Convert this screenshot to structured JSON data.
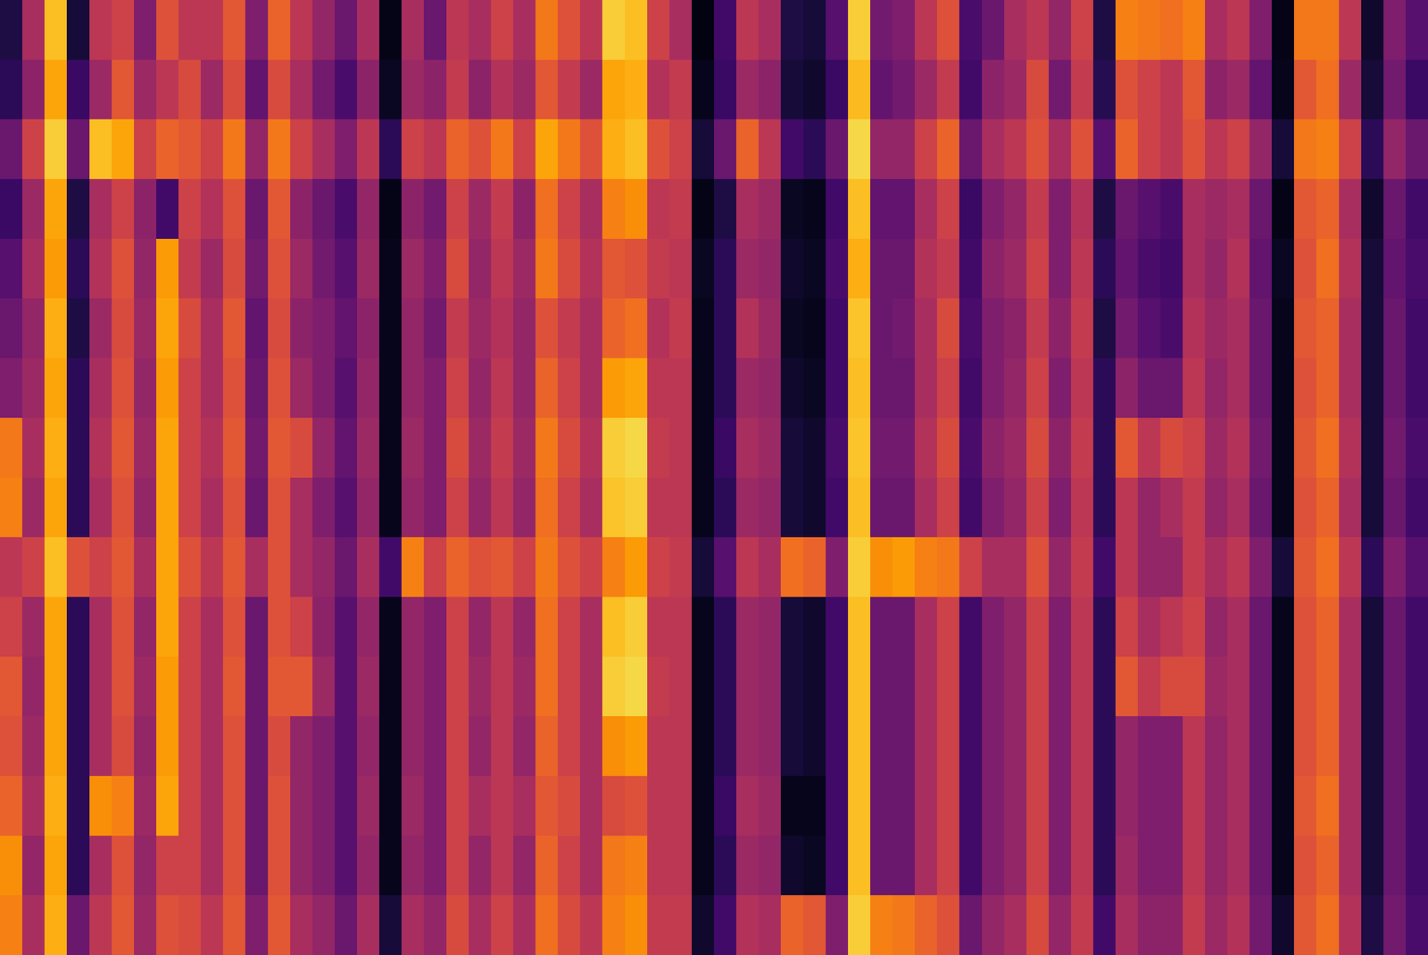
{
  "chart_data": {
    "type": "heatmap",
    "color": "inferno",
    "color_range": [
      0,
      1
    ],
    "tick_labels": false,
    "cells": [
      [
        0.12,
        0.45,
        0.85,
        0.1,
        0.5,
        0.55,
        0.35,
        0.6,
        0.5,
        0.5,
        0.62,
        0.35,
        0.65,
        0.5,
        0.4,
        0.3,
        0.45,
        0.04,
        0.45,
        0.3,
        0.5,
        0.45,
        0.55,
        0.45,
        0.7,
        0.6,
        0.5,
        0.88,
        0.85,
        0.55,
        0.45,
        0.03,
        0.2,
        0.5,
        0.45,
        0.12,
        0.1,
        0.25,
        0.88,
        0.32,
        0.35,
        0.5,
        0.6,
        0.22,
        0.3,
        0.45,
        0.5,
        0.4,
        0.55,
        0.12,
        0.72,
        0.7,
        0.68,
        0.72,
        0.45,
        0.5,
        0.35,
        0.04,
        0.7,
        0.7,
        0.5,
        0.08,
        0.35,
        0.25
      ],
      [
        0.15,
        0.38,
        0.8,
        0.18,
        0.42,
        0.62,
        0.42,
        0.5,
        0.58,
        0.42,
        0.58,
        0.28,
        0.58,
        0.45,
        0.32,
        0.22,
        0.38,
        0.06,
        0.42,
        0.38,
        0.52,
        0.38,
        0.48,
        0.42,
        0.62,
        0.52,
        0.42,
        0.8,
        0.82,
        0.48,
        0.52,
        0.05,
        0.18,
        0.42,
        0.38,
        0.1,
        0.08,
        0.18,
        0.84,
        0.28,
        0.32,
        0.42,
        0.52,
        0.2,
        0.38,
        0.42,
        0.58,
        0.32,
        0.52,
        0.14,
        0.6,
        0.55,
        0.5,
        0.62,
        0.38,
        0.42,
        0.28,
        0.05,
        0.62,
        0.68,
        0.42,
        0.1,
        0.32,
        0.18
      ],
      [
        0.3,
        0.55,
        0.88,
        0.3,
        0.85,
        0.8,
        0.55,
        0.65,
        0.62,
        0.55,
        0.7,
        0.4,
        0.7,
        0.55,
        0.45,
        0.35,
        0.5,
        0.15,
        0.55,
        0.5,
        0.65,
        0.6,
        0.7,
        0.55,
        0.8,
        0.7,
        0.6,
        0.82,
        0.85,
        0.6,
        0.55,
        0.1,
        0.3,
        0.65,
        0.5,
        0.2,
        0.15,
        0.3,
        0.9,
        0.4,
        0.4,
        0.55,
        0.65,
        0.3,
        0.45,
        0.5,
        0.6,
        0.45,
        0.6,
        0.25,
        0.65,
        0.55,
        0.5,
        0.6,
        0.5,
        0.55,
        0.4,
        0.1,
        0.7,
        0.72,
        0.55,
        0.15,
        0.4,
        0.3
      ],
      [
        0.18,
        0.42,
        0.8,
        0.12,
        0.45,
        0.55,
        0.38,
        0.2,
        0.55,
        0.48,
        0.6,
        0.3,
        0.62,
        0.38,
        0.3,
        0.22,
        0.4,
        0.04,
        0.38,
        0.32,
        0.55,
        0.42,
        0.52,
        0.38,
        0.68,
        0.55,
        0.45,
        0.72,
        0.75,
        0.5,
        0.52,
        0.04,
        0.12,
        0.45,
        0.42,
        0.06,
        0.05,
        0.2,
        0.85,
        0.28,
        0.28,
        0.45,
        0.55,
        0.18,
        0.35,
        0.4,
        0.52,
        0.35,
        0.48,
        0.12,
        0.3,
        0.25,
        0.22,
        0.45,
        0.42,
        0.45,
        0.3,
        0.04,
        0.62,
        0.65,
        0.45,
        0.08,
        0.3,
        0.2
      ],
      [
        0.25,
        0.45,
        0.78,
        0.15,
        0.48,
        0.6,
        0.4,
        0.78,
        0.52,
        0.42,
        0.58,
        0.32,
        0.6,
        0.42,
        0.32,
        0.25,
        0.42,
        0.05,
        0.42,
        0.35,
        0.58,
        0.4,
        0.5,
        0.42,
        0.7,
        0.58,
        0.48,
        0.62,
        0.6,
        0.52,
        0.5,
        0.06,
        0.15,
        0.42,
        0.4,
        0.08,
        0.06,
        0.22,
        0.82,
        0.3,
        0.3,
        0.48,
        0.52,
        0.2,
        0.38,
        0.42,
        0.55,
        0.35,
        0.5,
        0.15,
        0.28,
        0.22,
        0.2,
        0.45,
        0.4,
        0.48,
        0.28,
        0.06,
        0.6,
        0.68,
        0.48,
        0.1,
        0.28,
        0.22
      ],
      [
        0.3,
        0.4,
        0.82,
        0.12,
        0.42,
        0.58,
        0.42,
        0.8,
        0.58,
        0.45,
        0.62,
        0.28,
        0.58,
        0.38,
        0.35,
        0.28,
        0.38,
        0.05,
        0.4,
        0.32,
        0.52,
        0.42,
        0.48,
        0.4,
        0.6,
        0.52,
        0.45,
        0.65,
        0.68,
        0.48,
        0.52,
        0.05,
        0.15,
        0.48,
        0.42,
        0.06,
        0.05,
        0.2,
        0.86,
        0.3,
        0.32,
        0.45,
        0.58,
        0.22,
        0.35,
        0.38,
        0.52,
        0.38,
        0.52,
        0.12,
        0.32,
        0.25,
        0.22,
        0.48,
        0.42,
        0.45,
        0.3,
        0.05,
        0.62,
        0.65,
        0.45,
        0.1,
        0.3,
        0.2
      ],
      [
        0.35,
        0.42,
        0.8,
        0.15,
        0.45,
        0.6,
        0.4,
        0.78,
        0.55,
        0.45,
        0.6,
        0.3,
        0.6,
        0.42,
        0.35,
        0.25,
        0.4,
        0.05,
        0.4,
        0.35,
        0.55,
        0.4,
        0.5,
        0.4,
        0.65,
        0.55,
        0.45,
        0.78,
        0.8,
        0.5,
        0.5,
        0.05,
        0.15,
        0.42,
        0.4,
        0.08,
        0.06,
        0.2,
        0.85,
        0.3,
        0.3,
        0.45,
        0.55,
        0.2,
        0.35,
        0.4,
        0.55,
        0.35,
        0.5,
        0.15,
        0.38,
        0.3,
        0.3,
        0.5,
        0.4,
        0.45,
        0.3,
        0.05,
        0.6,
        0.65,
        0.45,
        0.1,
        0.3,
        0.2
      ],
      [
        0.7,
        0.45,
        0.82,
        0.15,
        0.48,
        0.62,
        0.42,
        0.8,
        0.55,
        0.48,
        0.62,
        0.32,
        0.62,
        0.58,
        0.4,
        0.28,
        0.42,
        0.05,
        0.42,
        0.35,
        0.58,
        0.42,
        0.52,
        0.42,
        0.7,
        0.58,
        0.48,
        0.88,
        0.9,
        0.52,
        0.5,
        0.05,
        0.18,
        0.45,
        0.42,
        0.1,
        0.08,
        0.22,
        0.86,
        0.32,
        0.32,
        0.48,
        0.58,
        0.22,
        0.38,
        0.42,
        0.58,
        0.38,
        0.52,
        0.15,
        0.62,
        0.5,
        0.58,
        0.55,
        0.42,
        0.48,
        0.32,
        0.05,
        0.62,
        0.68,
        0.48,
        0.1,
        0.32,
        0.22
      ],
      [
        0.72,
        0.42,
        0.8,
        0.15,
        0.45,
        0.6,
        0.4,
        0.8,
        0.55,
        0.45,
        0.6,
        0.3,
        0.6,
        0.45,
        0.35,
        0.25,
        0.4,
        0.05,
        0.4,
        0.35,
        0.55,
        0.4,
        0.5,
        0.4,
        0.68,
        0.55,
        0.45,
        0.86,
        0.88,
        0.5,
        0.5,
        0.05,
        0.15,
        0.42,
        0.4,
        0.1,
        0.08,
        0.2,
        0.85,
        0.3,
        0.3,
        0.45,
        0.55,
        0.2,
        0.35,
        0.4,
        0.55,
        0.35,
        0.5,
        0.15,
        0.5,
        0.4,
        0.45,
        0.52,
        0.4,
        0.45,
        0.3,
        0.05,
        0.6,
        0.65,
        0.45,
        0.1,
        0.3,
        0.2
      ],
      [
        0.5,
        0.55,
        0.85,
        0.6,
        0.55,
        0.62,
        0.45,
        0.8,
        0.6,
        0.5,
        0.62,
        0.45,
        0.6,
        0.45,
        0.4,
        0.3,
        0.45,
        0.2,
        0.72,
        0.55,
        0.65,
        0.6,
        0.62,
        0.55,
        0.7,
        0.6,
        0.55,
        0.72,
        0.78,
        0.55,
        0.52,
        0.1,
        0.25,
        0.5,
        0.45,
        0.68,
        0.65,
        0.35,
        0.88,
        0.75,
        0.78,
        0.72,
        0.7,
        0.55,
        0.45,
        0.45,
        0.6,
        0.4,
        0.52,
        0.2,
        0.5,
        0.4,
        0.4,
        0.52,
        0.45,
        0.5,
        0.35,
        0.1,
        0.62,
        0.68,
        0.5,
        0.15,
        0.35,
        0.25
      ],
      [
        0.55,
        0.42,
        0.8,
        0.15,
        0.45,
        0.6,
        0.4,
        0.8,
        0.55,
        0.45,
        0.6,
        0.3,
        0.6,
        0.55,
        0.38,
        0.25,
        0.4,
        0.05,
        0.4,
        0.35,
        0.55,
        0.4,
        0.5,
        0.4,
        0.68,
        0.55,
        0.45,
        0.85,
        0.88,
        0.5,
        0.5,
        0.05,
        0.15,
        0.42,
        0.4,
        0.1,
        0.08,
        0.2,
        0.85,
        0.3,
        0.3,
        0.45,
        0.55,
        0.2,
        0.35,
        0.4,
        0.55,
        0.35,
        0.5,
        0.15,
        0.55,
        0.45,
        0.5,
        0.55,
        0.4,
        0.45,
        0.3,
        0.05,
        0.6,
        0.65,
        0.45,
        0.1,
        0.3,
        0.2
      ],
      [
        0.62,
        0.4,
        0.8,
        0.15,
        0.45,
        0.6,
        0.42,
        0.78,
        0.55,
        0.45,
        0.62,
        0.3,
        0.62,
        0.62,
        0.42,
        0.25,
        0.42,
        0.05,
        0.4,
        0.35,
        0.55,
        0.42,
        0.5,
        0.42,
        0.68,
        0.55,
        0.45,
        0.88,
        0.9,
        0.52,
        0.5,
        0.05,
        0.15,
        0.42,
        0.4,
        0.1,
        0.08,
        0.2,
        0.85,
        0.3,
        0.3,
        0.45,
        0.55,
        0.2,
        0.35,
        0.4,
        0.55,
        0.35,
        0.5,
        0.15,
        0.62,
        0.52,
        0.58,
        0.58,
        0.42,
        0.45,
        0.3,
        0.05,
        0.6,
        0.65,
        0.45,
        0.1,
        0.3,
        0.2
      ],
      [
        0.6,
        0.42,
        0.8,
        0.15,
        0.45,
        0.58,
        0.4,
        0.78,
        0.55,
        0.45,
        0.6,
        0.3,
        0.58,
        0.4,
        0.35,
        0.25,
        0.4,
        0.05,
        0.4,
        0.35,
        0.55,
        0.4,
        0.5,
        0.4,
        0.65,
        0.55,
        0.45,
        0.75,
        0.78,
        0.5,
        0.5,
        0.05,
        0.15,
        0.42,
        0.4,
        0.1,
        0.08,
        0.2,
        0.85,
        0.3,
        0.3,
        0.45,
        0.55,
        0.2,
        0.35,
        0.4,
        0.55,
        0.35,
        0.5,
        0.15,
        0.4,
        0.35,
        0.35,
        0.5,
        0.4,
        0.45,
        0.3,
        0.05,
        0.6,
        0.65,
        0.45,
        0.1,
        0.3,
        0.2
      ],
      [
        0.65,
        0.45,
        0.82,
        0.15,
        0.75,
        0.72,
        0.42,
        0.8,
        0.55,
        0.45,
        0.6,
        0.3,
        0.6,
        0.4,
        0.35,
        0.25,
        0.42,
        0.05,
        0.42,
        0.35,
        0.55,
        0.45,
        0.5,
        0.45,
        0.62,
        0.58,
        0.45,
        0.58,
        0.6,
        0.5,
        0.5,
        0.05,
        0.18,
        0.45,
        0.42,
        0.05,
        0.05,
        0.2,
        0.85,
        0.3,
        0.3,
        0.45,
        0.55,
        0.2,
        0.35,
        0.4,
        0.55,
        0.35,
        0.5,
        0.15,
        0.4,
        0.35,
        0.35,
        0.5,
        0.4,
        0.45,
        0.3,
        0.05,
        0.62,
        0.68,
        0.45,
        0.1,
        0.3,
        0.2
      ],
      [
        0.75,
        0.4,
        0.8,
        0.15,
        0.45,
        0.6,
        0.4,
        0.55,
        0.55,
        0.45,
        0.6,
        0.3,
        0.6,
        0.4,
        0.35,
        0.25,
        0.4,
        0.05,
        0.4,
        0.35,
        0.55,
        0.4,
        0.5,
        0.4,
        0.65,
        0.55,
        0.45,
        0.7,
        0.72,
        0.5,
        0.5,
        0.05,
        0.15,
        0.42,
        0.4,
        0.08,
        0.06,
        0.2,
        0.85,
        0.3,
        0.3,
        0.45,
        0.55,
        0.2,
        0.35,
        0.4,
        0.55,
        0.35,
        0.5,
        0.15,
        0.42,
        0.35,
        0.35,
        0.5,
        0.4,
        0.45,
        0.3,
        0.05,
        0.6,
        0.65,
        0.45,
        0.1,
        0.3,
        0.2
      ],
      [
        0.72,
        0.45,
        0.82,
        0.3,
        0.5,
        0.62,
        0.42,
        0.6,
        0.58,
        0.5,
        0.62,
        0.35,
        0.62,
        0.45,
        0.4,
        0.3,
        0.45,
        0.1,
        0.45,
        0.4,
        0.58,
        0.45,
        0.55,
        0.45,
        0.68,
        0.58,
        0.5,
        0.72,
        0.75,
        0.52,
        0.52,
        0.08,
        0.2,
        0.48,
        0.45,
        0.65,
        0.62,
        0.35,
        0.88,
        0.72,
        0.7,
        0.65,
        0.6,
        0.3,
        0.4,
        0.45,
        0.58,
        0.4,
        0.52,
        0.2,
        0.45,
        0.38,
        0.38,
        0.52,
        0.42,
        0.48,
        0.32,
        0.08,
        0.62,
        0.68,
        0.48,
        0.12,
        0.32,
        0.22
      ]
    ]
  }
}
